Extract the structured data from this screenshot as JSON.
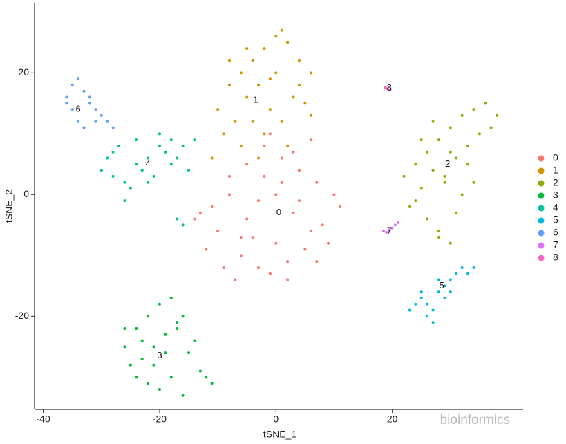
{
  "chart_data": {
    "type": "scatter",
    "x_label": "tSNE_1",
    "y_label": "tSNE_2",
    "xlim": [
      -41.5,
      42.5
    ],
    "ylim": [
      -35.3,
      31.4
    ],
    "xticks": [
      -40,
      -20,
      0,
      20
    ],
    "yticks": [
      -20,
      0,
      20
    ],
    "grid": false,
    "legend": "right",
    "watermark": "bioinformics",
    "series": [
      {
        "name": "0",
        "color": "#F8766D",
        "x": [
          -5,
          -2,
          1,
          4,
          7,
          10,
          -8,
          -11,
          -14,
          -16,
          -3,
          0,
          3,
          6,
          9,
          -6,
          -9,
          -12,
          -1,
          2,
          5,
          8,
          -4,
          -7,
          -10,
          1,
          4,
          -2,
          -5,
          3,
          6,
          -8,
          0,
          -3,
          2,
          11,
          -13,
          -6,
          7,
          -1
        ],
        "values": [
          5,
          8,
          6,
          4,
          2,
          0,
          3,
          -2,
          -4,
          -5,
          -1,
          0,
          -3,
          -6,
          -8,
          -10,
          -12,
          -9,
          -13,
          -11,
          -9,
          -5,
          -7,
          -14,
          -6,
          2,
          -1,
          3,
          -4,
          7,
          9,
          0,
          -8,
          -12,
          -14,
          -2,
          -3,
          -7,
          -11,
          10
        ]
      },
      {
        "name": "1",
        "color": "#D39200",
        "x": [
          -10,
          -8,
          -6,
          -4,
          -2,
          0,
          2,
          4,
          6,
          -9,
          -7,
          -5,
          -3,
          -1,
          1,
          3,
          5,
          -11,
          -6,
          -2,
          2,
          -8,
          -4,
          0,
          4,
          -3,
          1,
          -1,
          -5,
          6
        ],
        "values": [
          14,
          18,
          20,
          22,
          24,
          26,
          25,
          22,
          20,
          10,
          12,
          16,
          18,
          14,
          12,
          16,
          15,
          6,
          8,
          10,
          8,
          22,
          12,
          20,
          18,
          6,
          27,
          19,
          24,
          13
        ]
      },
      {
        "name": "2",
        "color": "#93AA00",
        "x": [
          22,
          24,
          26,
          28,
          30,
          32,
          34,
          36,
          38,
          23,
          25,
          27,
          29,
          31,
          33,
          35,
          26,
          28,
          30,
          32,
          27,
          29,
          31,
          33,
          24,
          37,
          25,
          28,
          30,
          34
        ],
        "values": [
          3,
          5,
          7,
          9,
          11,
          13,
          14,
          15,
          13,
          -2,
          1,
          4,
          2,
          6,
          8,
          10,
          -4,
          -6,
          -8,
          0,
          12,
          3,
          -3,
          5,
          -1,
          11,
          9,
          -7,
          7,
          2
        ]
      },
      {
        "name": "3",
        "color": "#00BA38",
        "x": [
          -26,
          -24,
          -22,
          -20,
          -18,
          -16,
          -14,
          -12,
          -25,
          -23,
          -21,
          -19,
          -17,
          -15,
          -13,
          -24,
          -22,
          -20,
          -18,
          -21,
          -19,
          -23,
          -17,
          -11,
          -26,
          -16
        ],
        "values": [
          -25,
          -22,
          -20,
          -18,
          -17,
          -20,
          -24,
          -30,
          -28,
          -27,
          -25,
          -23,
          -21,
          -26,
          -29,
          -30,
          -31,
          -32,
          -30,
          -28,
          -26,
          -24,
          -22,
          -31,
          -22,
          -33
        ]
      },
      {
        "name": "4",
        "color": "#00C19F",
        "x": [
          -30,
          -28,
          -26,
          -24,
          -22,
          -20,
          -18,
          -16,
          -14,
          -29,
          -27,
          -25,
          -23,
          -21,
          -19,
          -17,
          -15,
          -26,
          -22,
          -20,
          -18,
          -17,
          -16,
          -24,
          -28
        ],
        "values": [
          4,
          3,
          2,
          5,
          6,
          8,
          9,
          8,
          9,
          6,
          8,
          1,
          4,
          3,
          7,
          6,
          4,
          -1,
          2,
          10,
          5,
          -4,
          -5,
          9,
          7
        ]
      },
      {
        "name": "5",
        "color": "#00B9E3",
        "x": [
          23,
          24,
          25,
          26,
          27,
          28,
          29,
          30,
          31,
          32,
          33,
          34,
          26,
          27,
          28,
          30,
          25,
          29
        ],
        "values": [
          -19,
          -18,
          -17,
          -20,
          -21,
          -16,
          -15,
          -14,
          -13,
          -12,
          -13,
          -12,
          -18,
          -19,
          -14,
          -16,
          -16,
          -17
        ]
      },
      {
        "name": "6",
        "color": "#619CFF",
        "x": [
          -36,
          -35,
          -34,
          -33,
          -32,
          -31,
          -30,
          -29,
          -28,
          -35,
          -34,
          -33,
          -32,
          -36,
          -31
        ],
        "values": [
          16,
          18,
          19,
          17,
          15,
          14,
          13,
          12,
          11,
          14,
          12,
          11,
          16,
          15,
          12
        ]
      },
      {
        "name": "7",
        "color": "#DB72FB",
        "x": [
          18.5,
          19,
          19.5,
          20,
          20.5,
          21
        ],
        "values": [
          -6,
          -6.2,
          -5.8,
          -5.5,
          -5,
          -4.6
        ]
      },
      {
        "name": "8",
        "color": "#FF61C3",
        "x": [
          18.8,
          19.2,
          19.6
        ],
        "values": [
          17.6,
          17.4,
          17.2
        ]
      }
    ],
    "annotations": [
      {
        "label": "0",
        "x": 0.5,
        "y": -3
      },
      {
        "label": "1",
        "x": -3.5,
        "y": 15.5
      },
      {
        "label": "2",
        "x": 29.5,
        "y": 5
      },
      {
        "label": "3",
        "x": -20,
        "y": -26.5
      },
      {
        "label": "4",
        "x": -22,
        "y": 5
      },
      {
        "label": "5",
        "x": 28.5,
        "y": -15
      },
      {
        "label": "6",
        "x": -34,
        "y": 14
      },
      {
        "label": "7",
        "x": 19.5,
        "y": -6
      },
      {
        "label": "8",
        "x": 19.5,
        "y": 17.5
      }
    ]
  }
}
